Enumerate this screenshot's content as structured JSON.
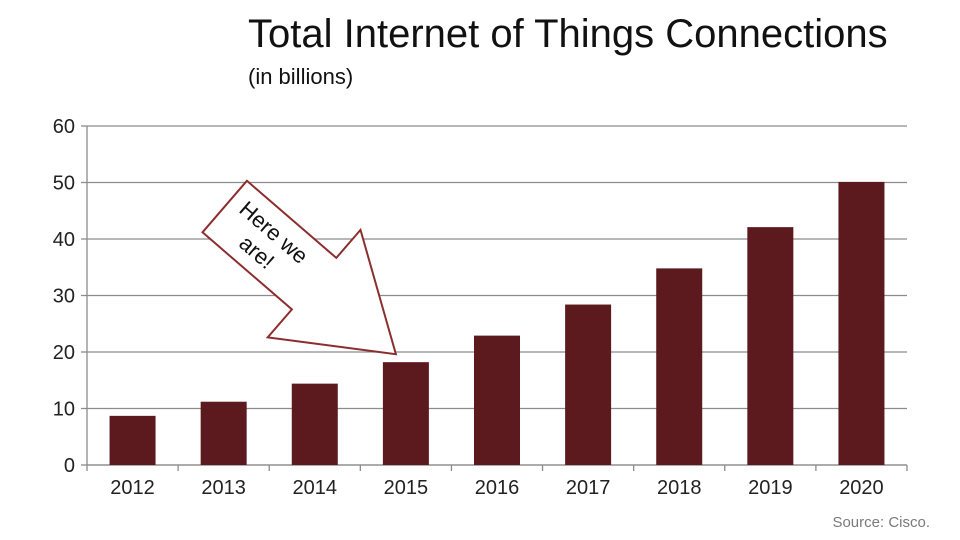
{
  "chart_data": {
    "type": "bar",
    "title": "Total Internet of Things Connections",
    "subtitle": "(in billions)",
    "categories": [
      "2012",
      "2013",
      "2014",
      "2015",
      "2016",
      "2017",
      "2018",
      "2019",
      "2020"
    ],
    "values": [
      8.7,
      11.2,
      14.4,
      18.2,
      22.9,
      28.4,
      34.8,
      42.1,
      50.1
    ],
    "ylim": [
      0,
      60
    ],
    "yticks": [
      0,
      10,
      20,
      30,
      40,
      50,
      60
    ],
    "grid": true,
    "bar_color": "#5c1a1e",
    "grid_color": "#8c8c8c",
    "annotation": {
      "lines": [
        "Here we",
        "are!"
      ],
      "points_to": "2015",
      "border_color": "#8b2e2e"
    },
    "source": "Source: Cisco."
  }
}
